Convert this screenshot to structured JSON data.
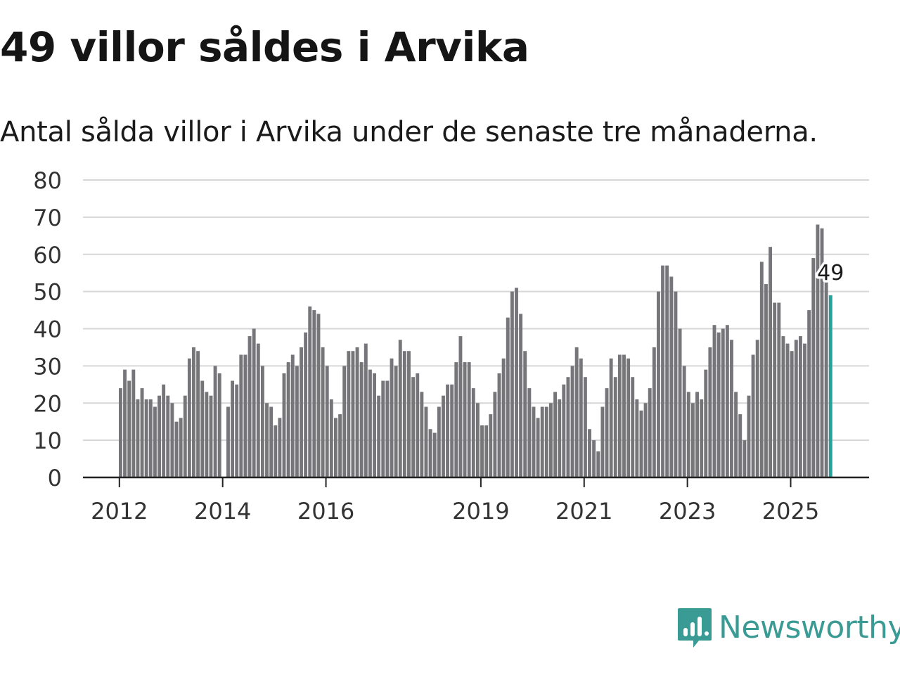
{
  "title": "49 villor såldes i Arvika",
  "subtitle": "Antal sålda villor i Arvika under de senaste tre månaderna.",
  "brand": {
    "name": "Newsworthy",
    "color": "#3a9a94"
  },
  "colors": {
    "bar": "#75757a",
    "highlight": "#27a39c",
    "grid": "#d6d6d6",
    "axis": "#222222"
  },
  "chart_data": {
    "type": "bar",
    "title": "49 villor såldes i Arvika",
    "xlabel": "",
    "ylabel": "",
    "ylim": [
      0,
      80
    ],
    "yticks": [
      0,
      10,
      20,
      30,
      40,
      50,
      60,
      70,
      80
    ],
    "xtick_labels": [
      {
        "label": "2012",
        "index": 0
      },
      {
        "label": "2014",
        "index": 24
      },
      {
        "label": "2016",
        "index": 48
      },
      {
        "label": "2019",
        "index": 84
      },
      {
        "label": "2021",
        "index": 108
      },
      {
        "label": "2023",
        "index": 132
      },
      {
        "label": "2025",
        "index": 156
      }
    ],
    "series": [
      {
        "name": "Antal sålda villor (senaste tre månaderna)",
        "values": [
          24,
          29,
          26,
          29,
          21,
          24,
          21,
          21,
          19,
          22,
          25,
          22,
          20,
          15,
          16,
          22,
          32,
          35,
          34,
          26,
          23,
          22,
          30,
          28,
          0,
          19,
          26,
          25,
          33,
          33,
          38,
          40,
          36,
          30,
          20,
          19,
          14,
          16,
          28,
          31,
          33,
          30,
          35,
          39,
          46,
          45,
          44,
          35,
          30,
          21,
          16,
          17,
          30,
          34,
          34,
          35,
          31,
          36,
          29,
          28,
          22,
          26,
          26,
          32,
          30,
          37,
          34,
          34,
          27,
          28,
          23,
          19,
          13,
          12,
          19,
          22,
          25,
          25,
          31,
          38,
          31,
          31,
          24,
          20,
          14,
          14,
          17,
          23,
          28,
          32,
          43,
          50,
          51,
          44,
          34,
          24,
          19,
          16,
          19,
          19,
          20,
          23,
          21,
          25,
          27,
          30,
          35,
          32,
          27,
          13,
          10,
          7,
          19,
          24,
          32,
          27,
          33,
          33,
          32,
          27,
          21,
          18,
          20,
          24,
          35,
          50,
          57,
          57,
          54,
          50,
          40,
          30,
          23,
          20,
          23,
          21,
          29,
          35,
          41,
          39,
          40,
          41,
          37,
          23,
          17,
          10,
          22,
          33,
          37,
          58,
          52,
          62,
          47,
          47,
          38,
          36,
          34,
          37,
          38,
          36,
          45,
          59,
          68,
          67,
          55,
          49
        ]
      }
    ],
    "highlight": {
      "index": 165,
      "value": 49,
      "label": "49"
    }
  }
}
